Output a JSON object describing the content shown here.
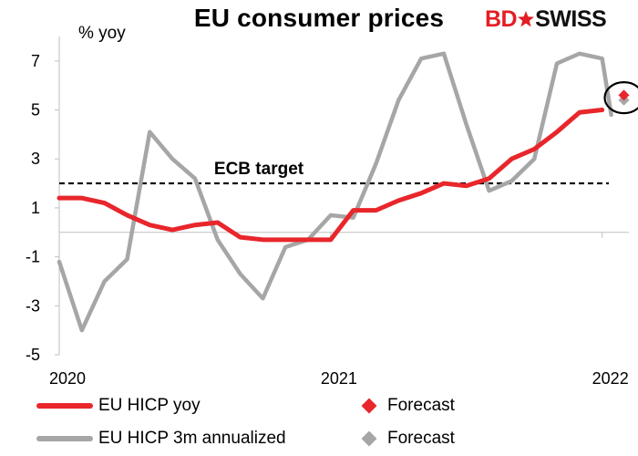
{
  "header": {
    "title": "EU consumer prices",
    "logo": {
      "part1": "BD",
      "part2": "SWISS"
    }
  },
  "chart_data": {
    "type": "line",
    "ylabel": "% yoy",
    "ylim": [
      -5,
      8
    ],
    "yticks": [
      7,
      5,
      3,
      1,
      -1,
      -3,
      -5
    ],
    "xlim": [
      0,
      25
    ],
    "xticks": [
      {
        "x": 0,
        "label": "2020"
      },
      {
        "x": 12,
        "label": "2021"
      },
      {
        "x": 24,
        "label": "2022"
      }
    ],
    "grid": false,
    "legend_position": "bottom",
    "reference_line": {
      "label": "ECB target",
      "y": 2
    },
    "series": [
      {
        "name": "EU HICP yoy",
        "color": "#e8262b",
        "x": [
          0,
          1,
          2,
          3,
          4,
          5,
          6,
          7,
          8,
          9,
          10,
          11,
          12,
          13,
          14,
          15,
          16,
          17,
          18,
          19,
          20,
          21,
          22,
          23,
          24
        ],
        "values": [
          1.4,
          1.4,
          1.2,
          0.7,
          0.3,
          0.1,
          0.3,
          0.4,
          -0.2,
          -0.3,
          -0.3,
          -0.3,
          -0.3,
          0.9,
          0.9,
          1.3,
          1.6,
          2.0,
          1.9,
          2.2,
          3.0,
          3.4,
          4.1,
          4.9,
          5.0
        ]
      },
      {
        "name": "EU HICP 3m annualized",
        "color": "#a6a6a6",
        "x": [
          0,
          1,
          2,
          3,
          4,
          5,
          6,
          7,
          8,
          9,
          10,
          11,
          12,
          13,
          14,
          15,
          16,
          17,
          18,
          19,
          20,
          21,
          22,
          23,
          24
        ],
        "values": [
          -1.2,
          -4.0,
          -2.0,
          -1.1,
          4.1,
          3.0,
          2.2,
          -0.3,
          -1.7,
          -2.7,
          -0.6,
          -0.3,
          0.7,
          0.6,
          2.8,
          5.4,
          7.1,
          7.3,
          4.4,
          1.7,
          2.1,
          3.0,
          6.9,
          7.3,
          7.1
        ]
      }
    ],
    "forecasts": [
      {
        "name": "Forecast",
        "color": "#e8262b",
        "x": 25,
        "value": 5.6
      },
      {
        "name": "Forecast",
        "color": "#a6a6a6",
        "x": 25,
        "value": 5.4
      }
    ],
    "last_point": {
      "series": "EU HICP 3m annualized",
      "x": 24.4,
      "value": 4.8
    }
  }
}
